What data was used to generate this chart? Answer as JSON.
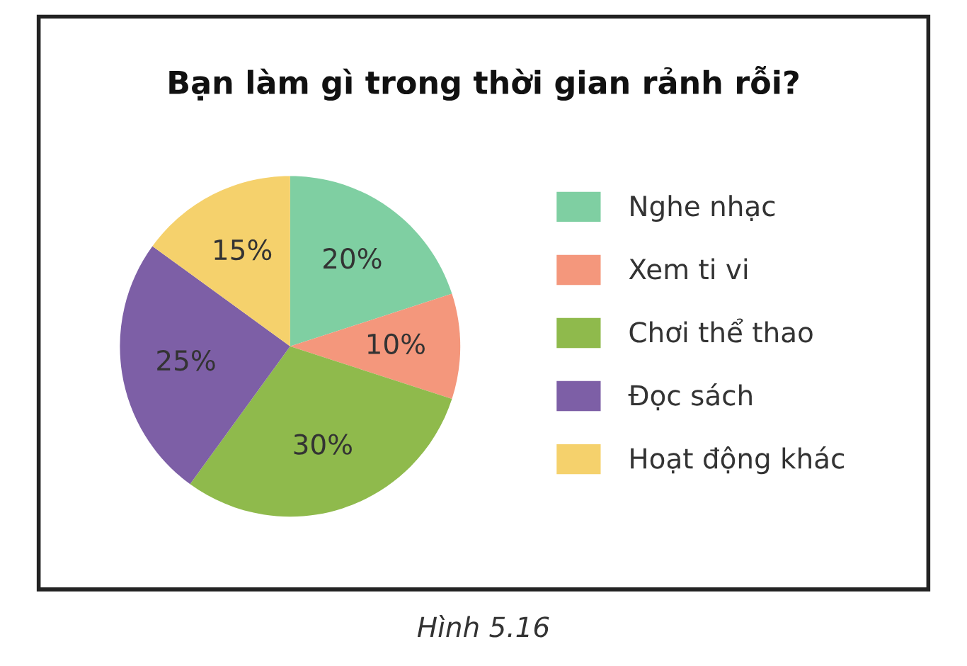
{
  "chart_data": {
    "type": "pie",
    "title": "Bạn làm gì trong thời gian rảnh rỗi?",
    "categories": [
      "Nghe nhạc",
      "Xem ti vi",
      "Chơi thể thao",
      "Đọc sách",
      "Hoạt động khác"
    ],
    "values": [
      20,
      10,
      30,
      25,
      15
    ],
    "value_labels": [
      "20%",
      "10%",
      "30%",
      "25%",
      "15%"
    ],
    "colors": [
      "#7fcfa2",
      "#f4977c",
      "#8fba4c",
      "#7d5fa6",
      "#f5d16c"
    ],
    "legend": "right",
    "annotations": [
      "Hình 5.16"
    ]
  }
}
